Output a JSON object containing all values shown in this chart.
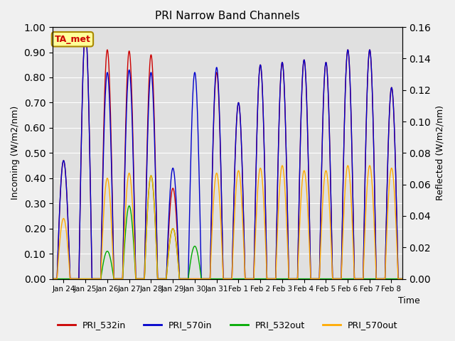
{
  "title": "PRI Narrow Band Channels",
  "xlabel": "Time",
  "ylabel_left": "Incoming (W/m2/nm)",
  "ylabel_right": "Reflected (W/m2/nm)",
  "ylim_left": [
    0.0,
    1.0
  ],
  "ylim_right": [
    0.0,
    0.16
  ],
  "legend_labels": [
    "PRI_532in",
    "PRI_570in",
    "PRI_532out",
    "PRI_570out"
  ],
  "legend_colors": [
    "#cc0000",
    "#0000cc",
    "#00aa00",
    "#ffaa00"
  ],
  "annotation_text": "TA_met",
  "annotation_color": "#cc0000",
  "annotation_bg": "#ffff99",
  "bg_color": "#e0e0e0",
  "tick_labels": [
    "Jan 24",
    "Jan 25",
    "Jan 26",
    "Jan 27",
    "Jan 28",
    "Jan 29",
    "Jan 30",
    "Jan 31",
    "Feb 1",
    "Feb 2",
    "Feb 3",
    "Feb 4",
    "Feb 5",
    "Feb 6",
    "Feb 7",
    "Feb 8"
  ],
  "daily_peaks_532in": [
    0.47,
    0.98,
    0.91,
    0.905,
    0.89,
    0.36,
    0.0,
    0.82,
    0.7,
    0.85,
    0.86,
    0.87,
    0.86,
    0.91,
    0.91,
    0.76
  ],
  "daily_peaks_570in": [
    0.47,
    0.98,
    0.82,
    0.83,
    0.82,
    0.44,
    0.82,
    0.84,
    0.7,
    0.85,
    0.86,
    0.87,
    0.86,
    0.91,
    0.91,
    0.76
  ],
  "daily_peaks_532out": [
    0.0,
    0.0,
    0.11,
    0.29,
    0.41,
    0.2,
    0.13,
    0.0,
    0.0,
    0.0,
    0.0,
    0.0,
    0.0,
    0.0,
    0.0,
    0.0
  ],
  "daily_peaks_570out": [
    0.24,
    0.0,
    0.4,
    0.42,
    0.41,
    0.2,
    0.0,
    0.42,
    0.43,
    0.44,
    0.45,
    0.43,
    0.43,
    0.45,
    0.45,
    0.44
  ],
  "n_days": 16,
  "pts_per_day": 100
}
